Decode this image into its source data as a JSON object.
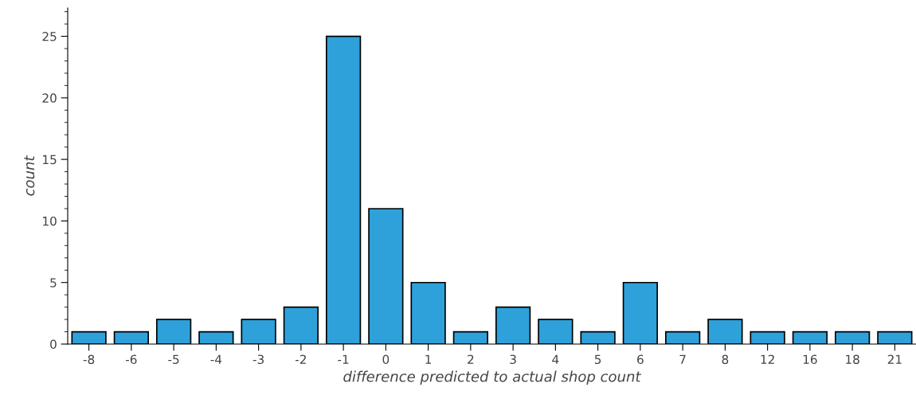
{
  "chart_data": {
    "type": "bar",
    "xlabel": "difference predicted to actual shop count",
    "ylabel": "count",
    "categories": [
      "-8",
      "-6",
      "-5",
      "-4",
      "-3",
      "-2",
      "-1",
      "0",
      "1",
      "2",
      "3",
      "4",
      "5",
      "6",
      "7",
      "8",
      "12",
      "16",
      "18",
      "21"
    ],
    "values": [
      1,
      1,
      2,
      1,
      2,
      3,
      25,
      11,
      5,
      1,
      3,
      2,
      1,
      5,
      1,
      2,
      1,
      1,
      1,
      1
    ],
    "color": "#2ea1da",
    "ylim": [
      0,
      27.3
    ],
    "yticks": [
      0,
      5,
      10,
      15,
      20,
      25
    ],
    "grid": false,
    "legend": false
  }
}
